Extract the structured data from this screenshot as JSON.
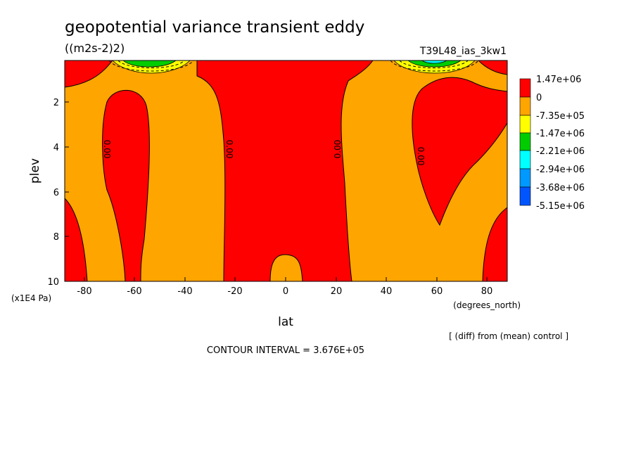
{
  "chart_data": {
    "type": "heatmap",
    "title": "geopotential variance transient eddy",
    "units": "((m2s-2)2)",
    "experiment": "T39L48_ias_3kw1",
    "xlabel": "lat",
    "xunits": "(degrees_north)",
    "ylabel": "plev",
    "yunits": "(x1E4 Pa)",
    "xlim": [
      -88,
      88
    ],
    "ylim": [
      10,
      0.1
    ],
    "xticks": [
      "-80",
      "-60",
      "-40",
      "-20",
      "0",
      "20",
      "40",
      "60",
      "80"
    ],
    "yticks": [
      "2",
      "4",
      "6",
      "8",
      "10"
    ],
    "contour_interval": "CONTOUR INTERVAL = 3.676E+05",
    "note": "[ (diff) from (mean) control ]",
    "contour_labels": [
      "0.00",
      "0.00",
      "0.00",
      "0.00"
    ],
    "colorbar": {
      "labels": [
        "1.47e+06",
        "0",
        "-7.35e+05",
        "-1.47e+06",
        "-2.21e+06",
        "-2.94e+06",
        "-3.68e+06",
        "-5.15e+06"
      ],
      "colors": [
        "#ff0000",
        "#ffa500",
        "#ffff00",
        "#00cc00",
        "#00ffff",
        "#0099ff",
        "#0055ff"
      ]
    },
    "regions": {
      "positive_color": "#ff0000",
      "near_zero_color": "#ffa500",
      "negative_colors": [
        "#ffff00",
        "#00cc00",
        "#00ffff"
      ]
    }
  }
}
